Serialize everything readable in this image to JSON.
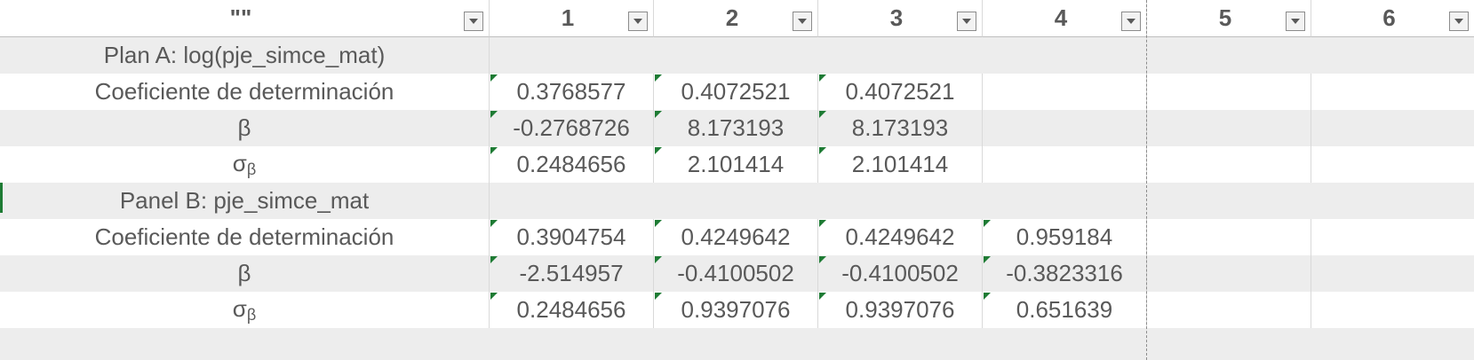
{
  "header": {
    "col0_label": "\"\"",
    "columns": [
      "1",
      "2",
      "3",
      "4",
      "5",
      "6"
    ]
  },
  "rows": [
    {
      "label": "Plan A: log(pje_simce_mat)",
      "values": [
        "",
        "",
        "",
        "",
        "",
        ""
      ],
      "section": true
    },
    {
      "label": "Coeficiente de determinación",
      "values": [
        "0.3768577",
        "0.4072521",
        "0.4072521",
        "",
        "",
        ""
      ]
    },
    {
      "label": "β",
      "values": [
        "-0.2768726",
        "8.173193",
        "8.173193",
        "",
        "",
        ""
      ]
    },
    {
      "label": "σ",
      "label_sub": "β",
      "values": [
        "0.2484656",
        "2.101414",
        "2.101414",
        "",
        "",
        ""
      ]
    },
    {
      "label": "Panel B: pje_simce_mat",
      "values": [
        "",
        "",
        "",
        "",
        "",
        ""
      ],
      "section": true
    },
    {
      "label": "Coeficiente de determinación",
      "values": [
        "0.3904754",
        "0.4249642",
        "0.4249642",
        "0.959184",
        "",
        ""
      ]
    },
    {
      "label": "β",
      "values": [
        "-2.514957",
        "-0.4100502",
        "-0.4100502",
        "-0.3823316",
        "",
        ""
      ]
    },
    {
      "label": "σ",
      "label_sub": "β",
      "values": [
        "0.2484656",
        "0.9397076",
        "0.9397076",
        "0.651639",
        "",
        ""
      ]
    }
  ],
  "colors": {
    "shade": "#ededed",
    "text": "#595959",
    "error_marker": "#1e7b34"
  }
}
